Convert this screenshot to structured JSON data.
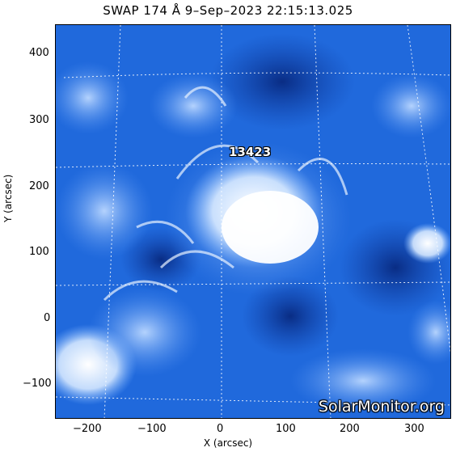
{
  "title": "SWAP 174 Å  9–Sep–2023 22:15:13.025",
  "axes": {
    "xlabel": "X (arcsec)",
    "ylabel": "Y (arcsec)",
    "xticks": [
      "−200",
      "−100",
      "0",
      "100",
      "200",
      "300"
    ],
    "yticks": [
      "400",
      "300",
      "200",
      "100",
      "0",
      "−100"
    ]
  },
  "region_label": "13423",
  "watermark": "SolarMonitor.org",
  "colors": {
    "background": "#1a5fd1",
    "bright": "#ffffff",
    "dark": "#0a2f8f"
  }
}
